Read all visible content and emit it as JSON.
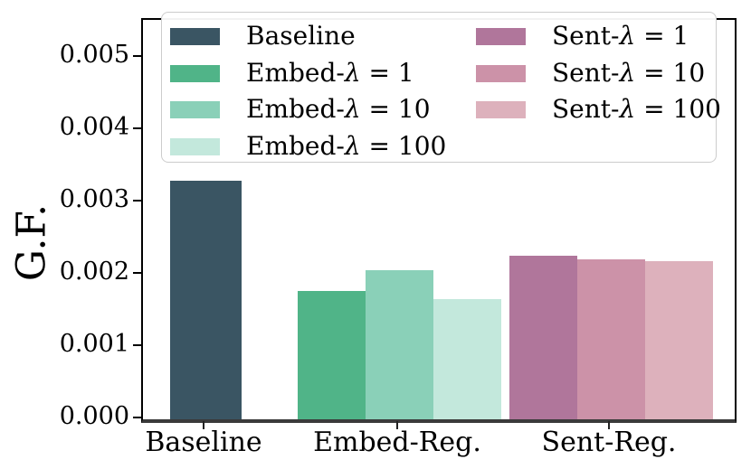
{
  "chart_data": {
    "type": "bar",
    "title": "",
    "xlabel": "",
    "ylabel": "G.F.",
    "ylim": [
      0,
      0.00553
    ],
    "grid": false,
    "legend_position": "upper center, inside axes, 2 columns",
    "ytick_labels": [
      "0.000",
      "0.001",
      "0.002",
      "0.003",
      "0.004",
      "0.005"
    ],
    "ytick_values": [
      0.0,
      0.001,
      0.002,
      0.003,
      0.004,
      0.005
    ],
    "categories": [
      "Baseline",
      "Embed-Reg.",
      "Sent-Reg."
    ],
    "series": [
      {
        "name": "Baseline",
        "category": "Baseline",
        "value": 0.0033,
        "color": "#3a5563"
      },
      {
        "name": "Embed-λ = 1",
        "category": "Embed-Reg.",
        "value": 0.00178,
        "color": "#50b488"
      },
      {
        "name": "Embed-λ = 10",
        "category": "Embed-Reg.",
        "value": 0.00207,
        "color": "#8ad0b8"
      },
      {
        "name": "Embed-λ = 100",
        "category": "Embed-Reg.",
        "value": 0.00166,
        "color": "#c3e8dc"
      },
      {
        "name": "Sent-λ = 1",
        "category": "Sent-Reg.",
        "value": 0.00226,
        "color": "#b0769b"
      },
      {
        "name": "Sent-λ = 10",
        "category": "Sent-Reg.",
        "value": 0.00222,
        "color": "#cc92a8"
      },
      {
        "name": "Sent-λ = 100",
        "category": "Sent-Reg.",
        "value": 0.00219,
        "color": "#ddb1bc"
      }
    ],
    "legend_columns": [
      [
        0,
        1,
        2,
        3
      ],
      [
        4,
        5,
        6
      ]
    ]
  }
}
